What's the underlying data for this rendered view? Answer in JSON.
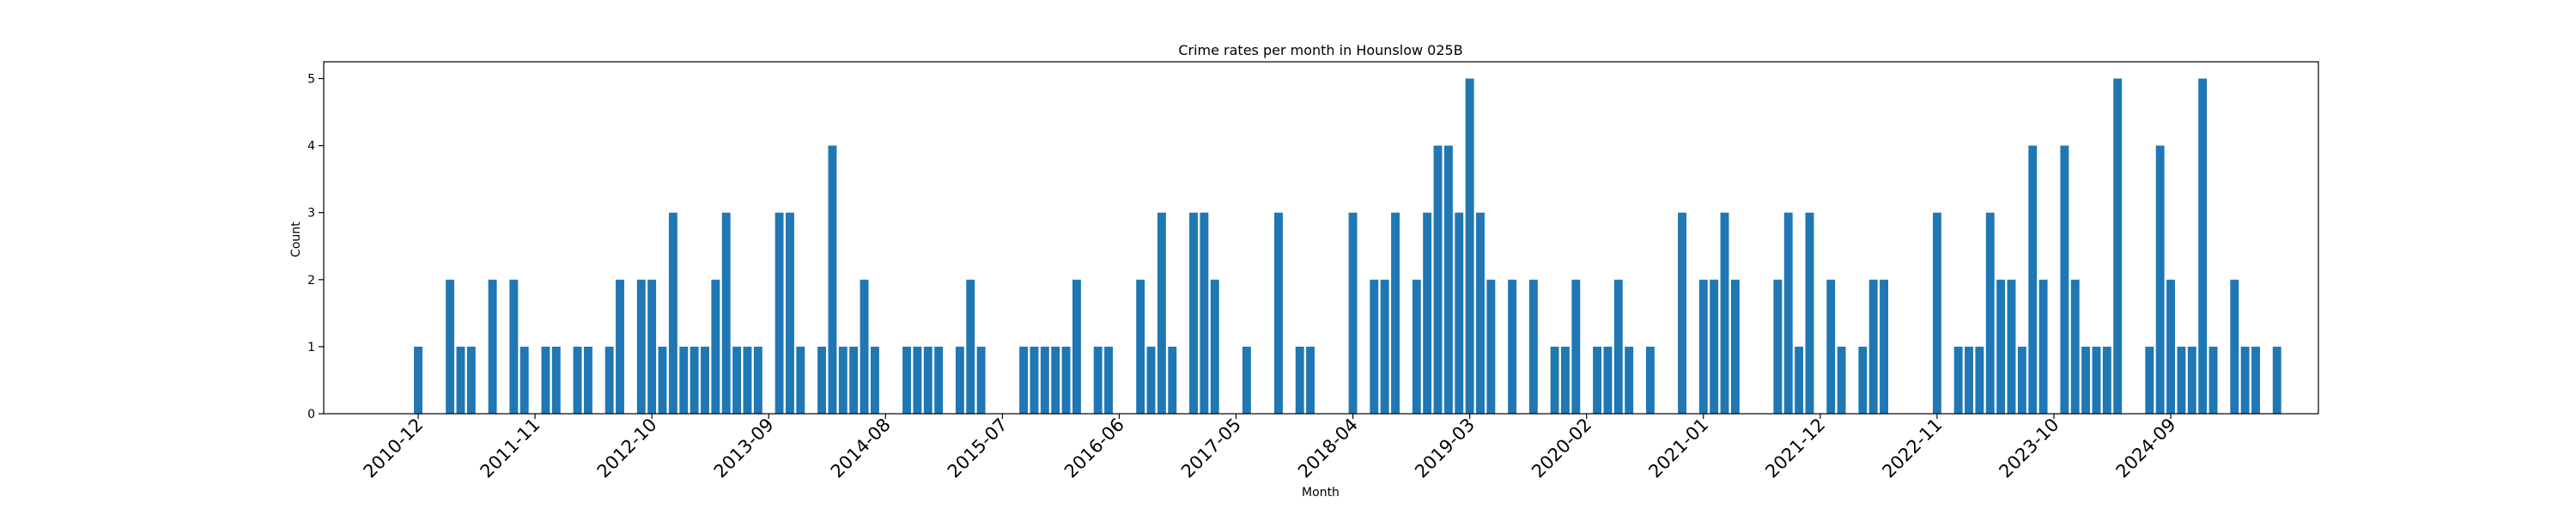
{
  "chart_data": {
    "type": "bar",
    "title": "Crime rates per month in Hounslow 025B",
    "xlabel": "Month",
    "ylabel": "Count",
    "ylim": [
      0,
      5.25
    ],
    "yticks": [
      0,
      1,
      2,
      3,
      4,
      5
    ],
    "bar_color": "#1f77b4",
    "grid": false,
    "xtick_labels": [
      {
        "label": "2010-12",
        "index": 0
      },
      {
        "label": "2011-11",
        "index": 11
      },
      {
        "label": "2012-10",
        "index": 22
      },
      {
        "label": "2013-09",
        "index": 33
      },
      {
        "label": "2014-08",
        "index": 44
      },
      {
        "label": "2015-07",
        "index": 55
      },
      {
        "label": "2016-06",
        "index": 66
      },
      {
        "label": "2017-05",
        "index": 77
      },
      {
        "label": "2018-04",
        "index": 88
      },
      {
        "label": "2019-03",
        "index": 99
      },
      {
        "label": "2020-02",
        "index": 110
      },
      {
        "label": "2021-01",
        "index": 121
      },
      {
        "label": "2021-12",
        "index": 132
      },
      {
        "label": "2022-11",
        "index": 143
      },
      {
        "label": "2023-10",
        "index": 154
      },
      {
        "label": "2024-09",
        "index": 165
      }
    ],
    "start_month": "2010-12",
    "values": [
      1,
      0,
      0,
      2,
      1,
      1,
      0,
      2,
      0,
      2,
      1,
      0,
      1,
      1,
      0,
      1,
      1,
      0,
      1,
      2,
      0,
      2,
      2,
      1,
      3,
      1,
      1,
      1,
      2,
      3,
      1,
      1,
      1,
      0,
      3,
      3,
      1,
      0,
      1,
      4,
      1,
      1,
      2,
      1,
      0,
      0,
      1,
      1,
      1,
      1,
      0,
      1,
      2,
      1,
      0,
      0,
      0,
      1,
      1,
      1,
      1,
      1,
      2,
      0,
      1,
      1,
      0,
      0,
      2,
      1,
      3,
      1,
      0,
      3,
      3,
      2,
      0,
      0,
      1,
      0,
      0,
      3,
      0,
      1,
      1,
      0,
      0,
      0,
      3,
      0,
      2,
      2,
      3,
      0,
      2,
      3,
      4,
      4,
      3,
      5,
      3,
      2,
      0,
      2,
      0,
      2,
      0,
      1,
      1,
      2,
      0,
      1,
      1,
      2,
      1,
      0,
      1,
      0,
      0,
      3,
      0,
      2,
      2,
      3,
      2,
      0,
      0,
      0,
      2,
      3,
      1,
      3,
      0,
      2,
      1,
      0,
      1,
      2,
      2,
      0,
      0,
      0,
      0,
      3,
      0,
      1,
      1,
      1,
      3,
      2,
      2,
      1,
      4,
      2,
      0,
      4,
      2,
      1,
      1,
      1,
      5,
      0,
      0,
      1,
      4,
      2,
      1,
      1,
      5,
      1,
      0,
      2,
      1,
      1,
      0,
      1
    ]
  }
}
